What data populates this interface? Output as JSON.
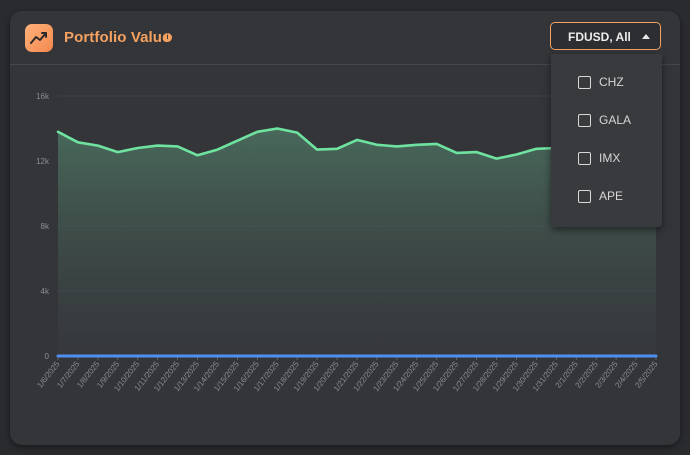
{
  "header": {
    "title": "Portfolio Value",
    "icon": "trend-line-icon",
    "info_icon": "info-icon",
    "accent_color": "#f5a15f"
  },
  "selector": {
    "value": "FDUSD, All",
    "options": [
      "CHZ",
      "GALA",
      "IMX",
      "APE"
    ]
  },
  "chart_data": {
    "type": "area",
    "y_ticks": [
      "16k",
      "12k",
      "8k",
      "4k",
      "0"
    ],
    "ylim": [
      0,
      16000
    ],
    "categories": [
      "1/6/2025",
      "1/7/2025",
      "1/8/2025",
      "1/9/2025",
      "1/10/2025",
      "1/11/2025",
      "1/12/2025",
      "1/13/2025",
      "1/14/2025",
      "1/15/2025",
      "1/16/2025",
      "1/17/2025",
      "1/18/2025",
      "1/19/2025",
      "1/20/2025",
      "1/21/2025",
      "1/22/2025",
      "1/23/2025",
      "1/24/2025",
      "1/25/2025",
      "1/26/2025",
      "1/27/2025",
      "1/28/2025",
      "1/29/2025",
      "1/30/2025",
      "1/31/2025",
      "2/1/2025",
      "2/2/2025",
      "2/3/2025",
      "2/4/2025",
      "2/5/2025"
    ],
    "series": [
      {
        "color": "#6ee3a0",
        "values": [
          13800,
          13150,
          12950,
          12550,
          12800,
          12950,
          12900,
          12350,
          12700,
          13250,
          13800,
          14000,
          13750,
          12700,
          12750,
          13300,
          13000,
          12900,
          13000,
          13050,
          12500,
          12550,
          12150,
          12400,
          12750,
          12800,
          12850,
          12900,
          12950,
          12850,
          12850
        ]
      },
      {
        "color": "#4f8ff0",
        "values": [
          0,
          0,
          0,
          0,
          0,
          0,
          0,
          0,
          0,
          0,
          0,
          0,
          0,
          0,
          0,
          0,
          0,
          0,
          0,
          0,
          0,
          0,
          0,
          0,
          0,
          0,
          0,
          0,
          0,
          0,
          0
        ]
      }
    ]
  }
}
